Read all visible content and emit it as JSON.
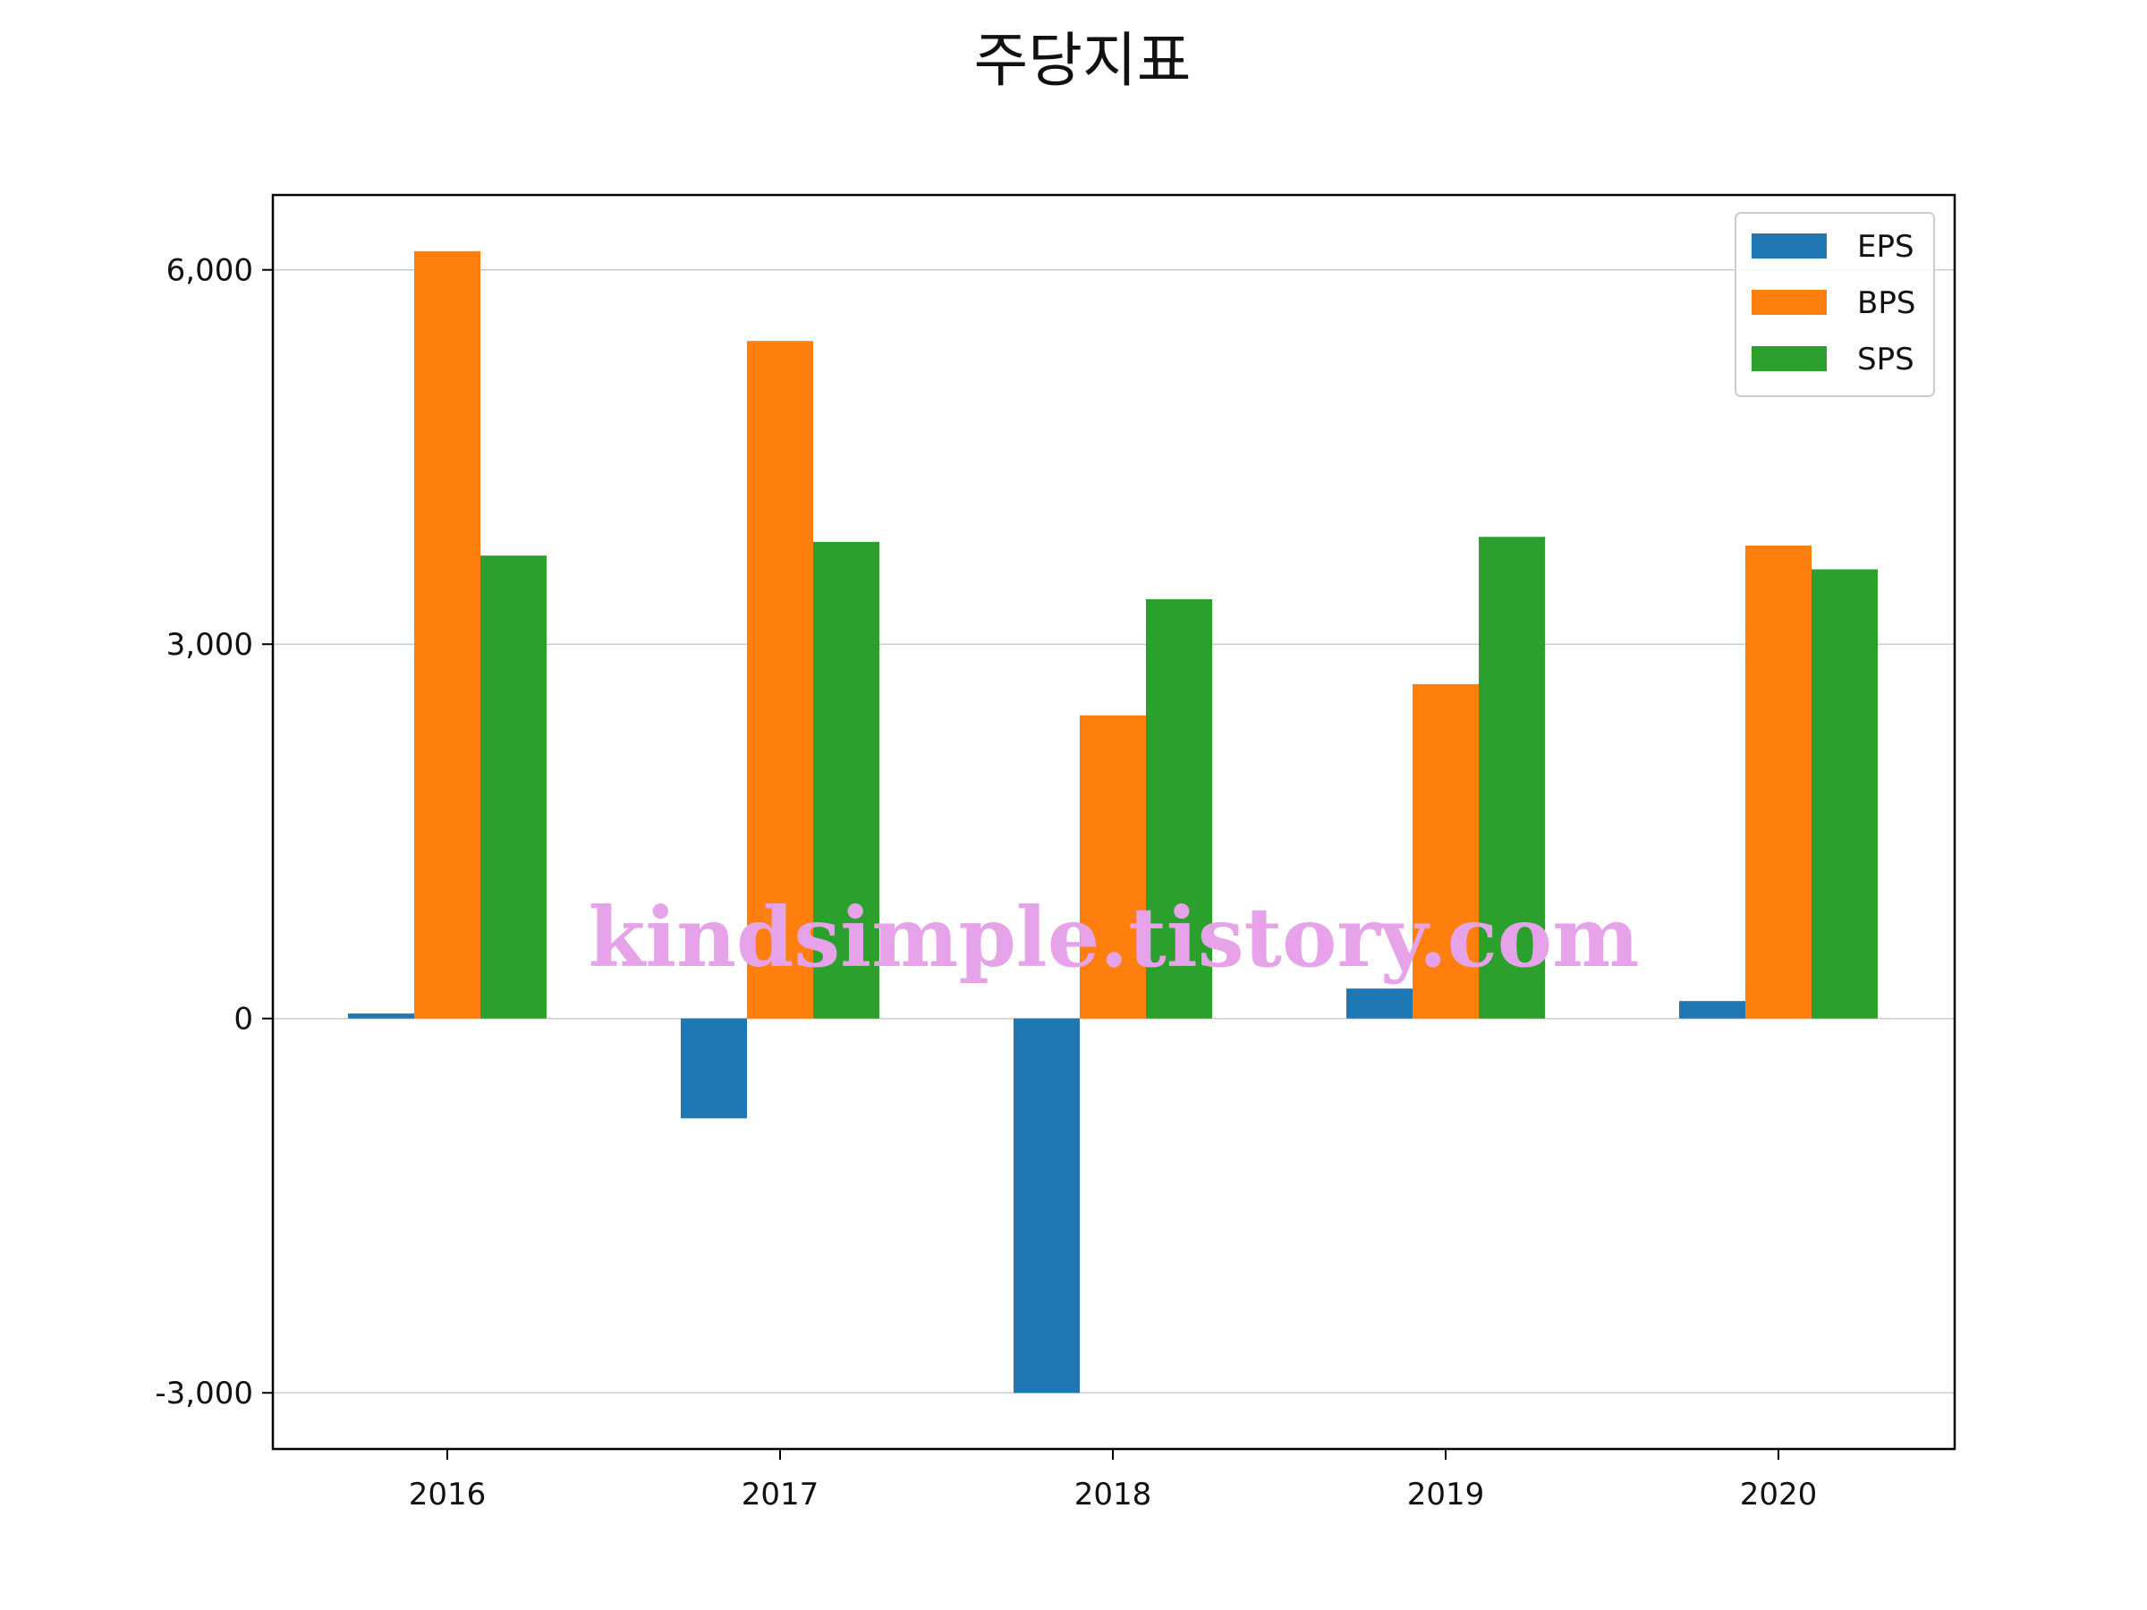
{
  "chart_data": {
    "type": "bar",
    "title": "주당지표",
    "xlabel": "",
    "ylabel": "",
    "categories": [
      "2016",
      "2017",
      "2018",
      "2019",
      "2020"
    ],
    "series": [
      {
        "name": "EPS",
        "color": "#1f77b4",
        "values": [
          40,
          -800,
          -3000,
          240,
          140
        ]
      },
      {
        "name": "BPS",
        "color": "#ff7f0e",
        "values": [
          6150,
          5430,
          2430,
          2680,
          3790
        ]
      },
      {
        "name": "SPS",
        "color": "#2ca02c",
        "values": [
          3710,
          3820,
          3360,
          3860,
          3600
        ]
      }
    ],
    "ylim": [
      -3450,
      6600
    ],
    "yticks": [
      -3000,
      0,
      3000,
      6000
    ],
    "ytick_labels": [
      "-3,000",
      "0",
      "3,000",
      "6,000"
    ],
    "grid": "y",
    "legend_position": "top-right"
  },
  "watermark": "kindsimple.tistory.com"
}
